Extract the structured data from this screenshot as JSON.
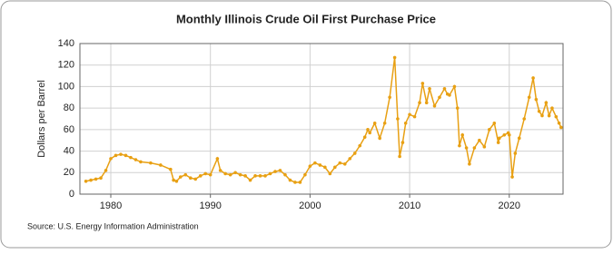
{
  "chart_data": {
    "type": "line",
    "title": "Monthly Illinois Crude Oil First Purchase Price",
    "y_label": "Dollars per Barrel",
    "source": "Source: U.S. Energy Information Administration",
    "color": "#e8a013",
    "xlim": [
      1976.9,
      2025.4
    ],
    "xticks": [
      1980,
      1990,
      2000,
      2010,
      2020
    ],
    "ylim": [
      0,
      140
    ],
    "yticks": [
      0,
      20,
      40,
      60,
      80,
      100,
      120,
      140
    ],
    "grid": true,
    "x": [
      1977.5,
      1978,
      1978.5,
      1979,
      1979.5,
      1980,
      1980.5,
      1981,
      1981.5,
      1982,
      1982.5,
      1983,
      1984,
      1985,
      1986,
      1986.3,
      1986.6,
      1987,
      1987.5,
      1988,
      1988.5,
      1989,
      1989.5,
      1990,
      1990.7,
      1991,
      1991.5,
      1992,
      1992.5,
      1993,
      1993.5,
      1994,
      1994.5,
      1995,
      1995.5,
      1996,
      1996.5,
      1997,
      1997.5,
      1998,
      1998.5,
      1999,
      1999.5,
      2000,
      2000.5,
      2001,
      2001.5,
      2002,
      2002.5,
      2003,
      2003.5,
      2004,
      2004.5,
      2005,
      2005.5,
      2005.8,
      2006,
      2006.5,
      2007,
      2007.5,
      2008,
      2008.5,
      2008.8,
      2009,
      2009.3,
      2009.6,
      2010,
      2010.5,
      2011,
      2011.3,
      2011.7,
      2012,
      2012.5,
      2013,
      2013.5,
      2013.8,
      2014,
      2014.5,
      2014.8,
      2015,
      2015.3,
      2015.7,
      2016,
      2016.5,
      2017,
      2017.5,
      2018,
      2018.5,
      2018.9,
      2019,
      2019.5,
      2019.9,
      2020,
      2020.3,
      2020.6,
      2021,
      2021.5,
      2022,
      2022.4,
      2022.7,
      2023,
      2023.3,
      2023.7,
      2024,
      2024.3,
      2024.7,
      2025,
      2025.2
    ],
    "values": [
      12,
      13,
      14,
      15,
      22,
      33,
      36,
      37,
      36,
      34,
      32,
      30,
      29,
      27,
      23,
      13,
      12,
      16,
      18,
      15,
      14,
      17,
      19,
      18,
      33,
      22,
      19,
      18,
      20,
      18,
      17,
      13,
      17,
      17,
      17,
      19,
      21,
      22,
      18,
      13,
      11,
      11,
      18,
      26,
      29,
      27,
      25,
      19,
      25,
      29,
      28,
      33,
      38,
      45,
      53,
      60,
      57,
      66,
      52,
      66,
      90,
      127,
      70,
      35,
      48,
      66,
      74,
      72,
      85,
      103,
      85,
      98,
      82,
      90,
      98,
      93,
      92,
      100,
      80,
      45,
      55,
      43,
      28,
      43,
      50,
      44,
      60,
      66,
      48,
      52,
      55,
      57,
      55,
      16,
      38,
      52,
      70,
      90,
      108,
      88,
      77,
      73,
      85,
      73,
      80,
      72,
      66,
      62
    ]
  }
}
